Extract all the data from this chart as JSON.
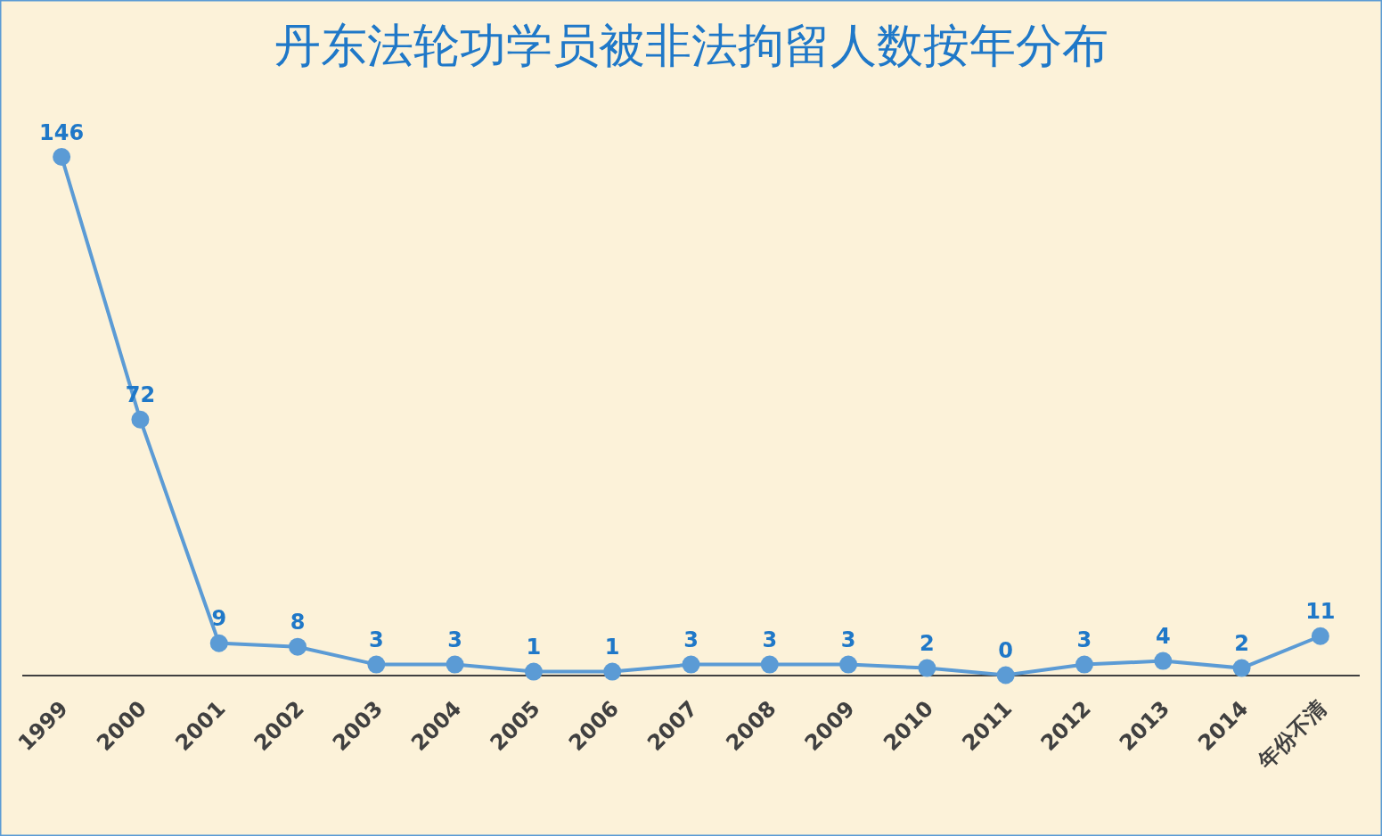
{
  "chart_data": {
    "type": "line",
    "title": "丹东法轮功学员被非法拘留人数按年分布",
    "categories": [
      "1999",
      "2000",
      "2001",
      "2002",
      "2003",
      "2004",
      "2005",
      "2006",
      "2007",
      "2008",
      "2009",
      "2010",
      "2011",
      "2012",
      "2013",
      "2014",
      "年份不清"
    ],
    "values": [
      146,
      72,
      9,
      8,
      3,
      3,
      1,
      1,
      3,
      3,
      3,
      2,
      0,
      3,
      4,
      2,
      11
    ],
    "color": "#5b9bd5",
    "marker": "circle",
    "data_labels": true,
    "grid": false
  }
}
